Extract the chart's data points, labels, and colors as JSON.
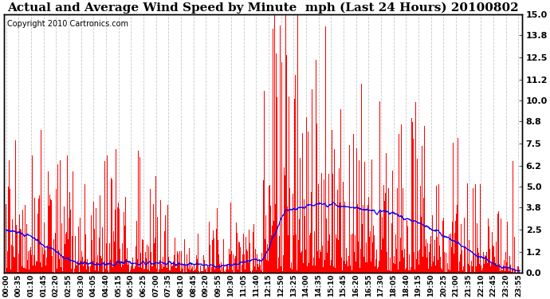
{
  "title": "Actual and Average Wind Speed by Minute  mph (Last 24 Hours) 20100802",
  "copyright": "Copyright 2010 Cartronics.com",
  "ylabel_right_ticks": [
    0.0,
    1.2,
    2.5,
    3.8,
    5.0,
    6.2,
    7.5,
    8.8,
    10.0,
    11.2,
    12.5,
    13.8,
    15.0
  ],
  "ylim": [
    0.0,
    15.0
  ],
  "bar_color": "#ff0000",
  "line_color": "#0000ff",
  "background_color": "#ffffff",
  "grid_color": "#c8c8c8",
  "title_fontsize": 11,
  "copyright_fontsize": 7,
  "tick_fontsize": 6.5,
  "n_minutes": 1440,
  "tick_step": 35
}
